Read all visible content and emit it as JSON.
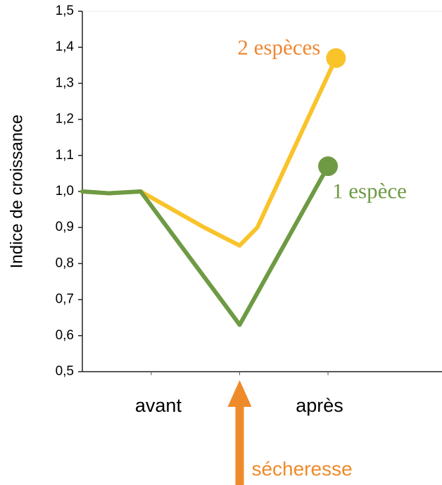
{
  "chart_data": {
    "type": "line",
    "y_label": "Indice de croissance",
    "xlim": [
      0.22,
      4.29
    ],
    "xticks": [
      {
        "value": 1,
        "label": "avant"
      },
      {
        "value": 3,
        "label": "après"
      }
    ],
    "ylim": [
      0.5,
      1.5
    ],
    "yticks": [
      {
        "value": 0.5,
        "label": "0,5"
      },
      {
        "value": 0.6,
        "label": "0,6"
      },
      {
        "value": 0.7,
        "label": "0,7"
      },
      {
        "value": 0.8,
        "label": "0,8"
      },
      {
        "value": 0.9,
        "label": "0,9"
      },
      {
        "value": 1.0,
        "label": "1,0"
      },
      {
        "value": 1.1,
        "label": "1,1"
      },
      {
        "value": 1.2,
        "label": "1,2"
      },
      {
        "value": 1.3,
        "label": "1,3"
      },
      {
        "value": 1.4,
        "label": "1,4"
      },
      {
        "value": 1.5,
        "label": "1,5"
      }
    ],
    "series": [
      {
        "name": "2 espèces",
        "color": "#f9c32a",
        "label_color": "#ee8733",
        "x": [
          0.22,
          0.52,
          0.88,
          1.6,
          2.0,
          2.2,
          3.09
        ],
        "values": [
          1.0,
          0.995,
          1.0,
          0.9,
          0.85,
          0.9,
          1.37
        ]
      },
      {
        "name": "1 espèce",
        "color": "#6e9a44",
        "label_color": "#6e9a44",
        "x": [
          0.22,
          0.52,
          0.88,
          1.88,
          2.0,
          3.0
        ],
        "values": [
          1.0,
          0.995,
          1.0,
          0.67,
          0.63,
          1.07
        ]
      }
    ],
    "annotation": {
      "text": "sécheresse",
      "x": 2,
      "color": "#ef8a2a"
    }
  }
}
